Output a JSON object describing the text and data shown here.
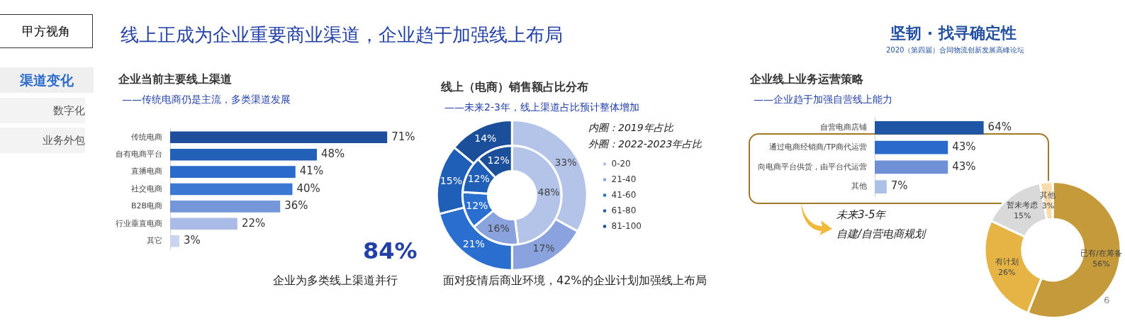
{
  "chart_data": [
    {
      "type": "other",
      "title": "线上正成为企业重要商业渠道，企业趋于加强线上布局",
      "annotations": [
        "甲方视角",
        "坚韧 · 找寻确定性",
        "2020（第四届）合同物流创新发展高峰论坛",
        "渠道变化",
        "数字化",
        "业务外包",
        "6"
      ]
    },
    {
      "type": "bar",
      "orientation": "horizontal",
      "title": "企业当前主要线上渠道",
      "subtitle": "——传统电商仍是主流，多类渠道发展",
      "categories": [
        "传统电商",
        "自有电商平台",
        "直播电商",
        "社交电商",
        "B2B电商",
        "行业垂直电商",
        "其它"
      ],
      "values": [
        71,
        48,
        41,
        40,
        36,
        22,
        3
      ],
      "value_labels": [
        "71%",
        "48%",
        "41%",
        "40%",
        "36%",
        "22%",
        "3%"
      ],
      "colors": [
        "#1f4f9c",
        "#2360b8",
        "#2a6acb",
        "#3b78d3",
        "#7597da",
        "#a9bbe6",
        "#c9d4f0"
      ],
      "annotations": [
        "84%",
        "企业为多类线上渠道并行"
      ]
    },
    {
      "type": "donut",
      "title": "线上（电商）销售额占比分布",
      "subtitle": "——未来2-3年，线上渠道占比预计整体增加",
      "categories": [
        "0-20",
        "21-40",
        "41-60",
        "61-80",
        "81-100"
      ],
      "colors": [
        "#b4c3e8",
        "#8aa3de",
        "#2a6fd0",
        "#1f5fb8",
        "#1c4f9a"
      ],
      "legend": "right",
      "series": [
        {
          "values": [
            33,
            17,
            21,
            15,
            14
          ],
          "value_labels": [
            "33%",
            "17%",
            "21%",
            "15%",
            "14%"
          ]
        },
        {
          "values": [
            48,
            16,
            12,
            12,
            12
          ],
          "value_labels": [
            "48%",
            "16%",
            "12%",
            "12%",
            "12%"
          ]
        }
      ],
      "annotations": [
        "内圈：2019年占比",
        "外圈：2022-2023年占比",
        "面对疫情后商业环境，42%的企业计划加强线上布局"
      ]
    },
    {
      "type": "bar",
      "orientation": "horizontal",
      "title": "企业线上业务运营策略",
      "subtitle": "——企业趋于加强自营线上能力",
      "categories": [
        "自营电商店铺",
        "通过电商经销商/TP商代运营",
        "向电商平台供货，由平台代运营",
        "其他"
      ],
      "values": [
        64,
        43,
        43,
        7
      ],
      "value_labels": [
        "64%",
        "43%",
        "43%",
        "7%"
      ],
      "colors": [
        "#1f55a5",
        "#2a6acb",
        "#6f8fd6",
        "#adc0e6"
      ],
      "annotations": [
        "未来3-5年",
        "自建/自营电商规划"
      ]
    },
    {
      "type": "donut",
      "categories": [
        "已有/在筹备",
        "有计划",
        "暂未考虑",
        "其他"
      ],
      "values": [
        56,
        26,
        15,
        3
      ],
      "value_labels": [
        "56%",
        "26%",
        "15%",
        "3%"
      ],
      "colors": [
        "#c49a3a",
        "#e5b445",
        "#d9d9d9",
        "#f8dcae"
      ]
    }
  ]
}
